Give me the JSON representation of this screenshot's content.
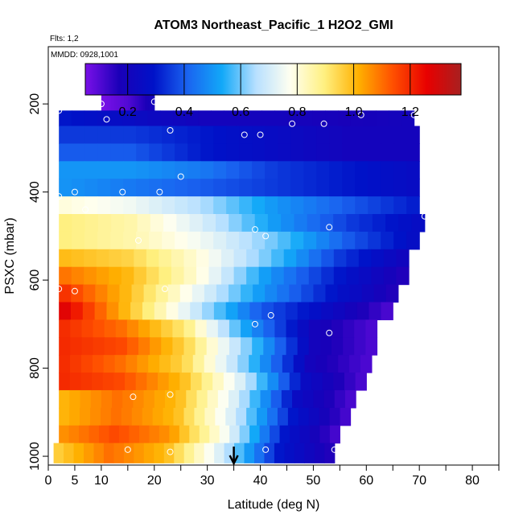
{
  "chart_data": {
    "type": "heatmap",
    "title": "ATOM3 Northeast_Pacific_1 H2O2_GMI",
    "subtitle_flights": "Flts: 1,2",
    "subtitle_dates": "MMDD: 0928,1001",
    "xlabel": "Latitude (deg N)",
    "ylabel": "PSXC (mbar)",
    "xlim": [
      0,
      85
    ],
    "ylim": [
      1020,
      70
    ],
    "x_ticks": [
      0,
      5,
      10,
      20,
      30,
      40,
      50,
      60,
      70,
      80
    ],
    "y_ticks": [
      200,
      400,
      600,
      800,
      1000
    ],
    "colorbar": {
      "range": [
        0.05,
        1.38
      ],
      "tick_values": [
        0.2,
        0.4,
        0.6,
        0.8,
        1.0,
        1.2
      ],
      "tick_labels": [
        "0.2",
        "0.4",
        "0.6",
        "0.8",
        "1.0",
        "1.2"
      ],
      "stops": [
        "#7a10e8",
        "#1a00b8",
        "#0012c8",
        "#1a64f0",
        "#12a8f8",
        "#b8e0ff",
        "#fffff0",
        "#fff080",
        "#ffb000",
        "#ff5000",
        "#e80000",
        "#a82020"
      ]
    },
    "bands": [
      {
        "p": 200,
        "x0": 10,
        "x1": 20,
        "v": [
          0.05,
          0.1,
          0.2
        ]
      },
      {
        "p": 230,
        "x0": 2,
        "x1": 69,
        "v": [
          0.3,
          0.25,
          0.2,
          0.2,
          0.18,
          0.2
        ]
      },
      {
        "p": 270,
        "x0": 2,
        "x1": 70,
        "v": [
          0.35,
          0.35,
          0.3,
          0.25,
          0.2,
          0.2
        ]
      },
      {
        "p": 310,
        "x0": 2,
        "x1": 70,
        "v": [
          0.4,
          0.4,
          0.3,
          0.25,
          0.2,
          0.2
        ]
      },
      {
        "p": 350,
        "x0": 2,
        "x1": 70,
        "v": [
          0.5,
          0.5,
          0.45,
          0.35,
          0.3,
          0.25
        ]
      },
      {
        "p": 390,
        "x0": 2,
        "x1": 70,
        "v": [
          0.5,
          0.45,
          0.4,
          0.35,
          0.3,
          0.25
        ]
      },
      {
        "p": 430,
        "x0": 2,
        "x1": 70,
        "v": [
          0.8,
          0.75,
          0.65,
          0.5,
          0.4,
          0.3
        ]
      },
      {
        "p": 470,
        "x0": 2,
        "x1": 71,
        "v": [
          0.9,
          0.85,
          0.7,
          0.5,
          0.35,
          0.25
        ]
      },
      {
        "p": 510,
        "x0": 2,
        "x1": 70,
        "v": [
          0.9,
          0.85,
          0.75,
          0.6,
          0.4,
          0.25
        ]
      },
      {
        "p": 550,
        "x0": 2,
        "x1": 68,
        "v": [
          1.0,
          0.95,
          0.8,
          0.6,
          0.35,
          0.2
        ]
      },
      {
        "p": 590,
        "x0": 2,
        "x1": 68,
        "v": [
          1.1,
          1.0,
          0.8,
          0.5,
          0.3,
          0.15
        ]
      },
      {
        "p": 630,
        "x0": 2,
        "x1": 66,
        "v": [
          1.2,
          1.0,
          0.75,
          0.5,
          0.3,
          0.15
        ]
      },
      {
        "p": 670,
        "x0": 2,
        "x1": 65,
        "v": [
          1.3,
          1.0,
          0.7,
          0.4,
          0.25,
          0.1
        ]
      },
      {
        "p": 710,
        "x0": 2,
        "x1": 62,
        "v": [
          1.2,
          1.1,
          0.9,
          0.5,
          0.2,
          0.1
        ]
      },
      {
        "p": 750,
        "x0": 2,
        "x1": 62,
        "v": [
          1.2,
          1.15,
          0.95,
          0.6,
          0.2,
          0.1
        ]
      },
      {
        "p": 790,
        "x0": 2,
        "x1": 61,
        "v": [
          1.2,
          1.1,
          0.95,
          0.6,
          0.2,
          0.1
        ]
      },
      {
        "p": 830,
        "x0": 2,
        "x1": 60,
        "v": [
          1.2,
          1.15,
          1.0,
          0.7,
          0.25,
          0.1
        ]
      },
      {
        "p": 870,
        "x0": 2,
        "x1": 58,
        "v": [
          1.0,
          1.1,
          1.0,
          0.7,
          0.25,
          0.1
        ]
      },
      {
        "p": 910,
        "x0": 2,
        "x1": 57,
        "v": [
          1.0,
          1.1,
          1.0,
          0.7,
          0.3,
          0.1
        ]
      },
      {
        "p": 950,
        "x0": 2,
        "x1": 55,
        "v": [
          1.05,
          1.15,
          1.05,
          0.75,
          0.3,
          0.1
        ]
      },
      {
        "p": 990,
        "x0": 1,
        "x1": 54,
        "v": [
          0.95,
          1.1,
          1.0,
          0.7,
          0.3,
          0.15
        ]
      }
    ],
    "sample_points": [
      [
        2,
        215
      ],
      [
        10,
        200
      ],
      [
        11,
        235
      ],
      [
        20,
        195
      ],
      [
        23,
        260
      ],
      [
        25,
        365
      ],
      [
        14,
        400
      ],
      [
        5,
        400
      ],
      [
        2,
        410
      ],
      [
        7,
        440
      ],
      [
        21,
        400
      ],
      [
        17,
        510
      ],
      [
        37,
        270
      ],
      [
        40,
        270
      ],
      [
        46,
        245
      ],
      [
        52,
        245
      ],
      [
        59,
        225
      ],
      [
        69,
        225
      ],
      [
        71,
        455
      ],
      [
        53,
        480
      ],
      [
        39,
        485
      ],
      [
        41,
        500
      ],
      [
        2,
        620
      ],
      [
        5,
        625
      ],
      [
        22,
        620
      ],
      [
        42,
        680
      ],
      [
        39,
        700
      ],
      [
        53,
        720
      ],
      [
        16,
        865
      ],
      [
        23,
        860
      ],
      [
        15,
        985
      ],
      [
        23,
        990
      ],
      [
        41,
        985
      ],
      [
        54,
        985
      ]
    ],
    "arrow_lat": 35
  }
}
